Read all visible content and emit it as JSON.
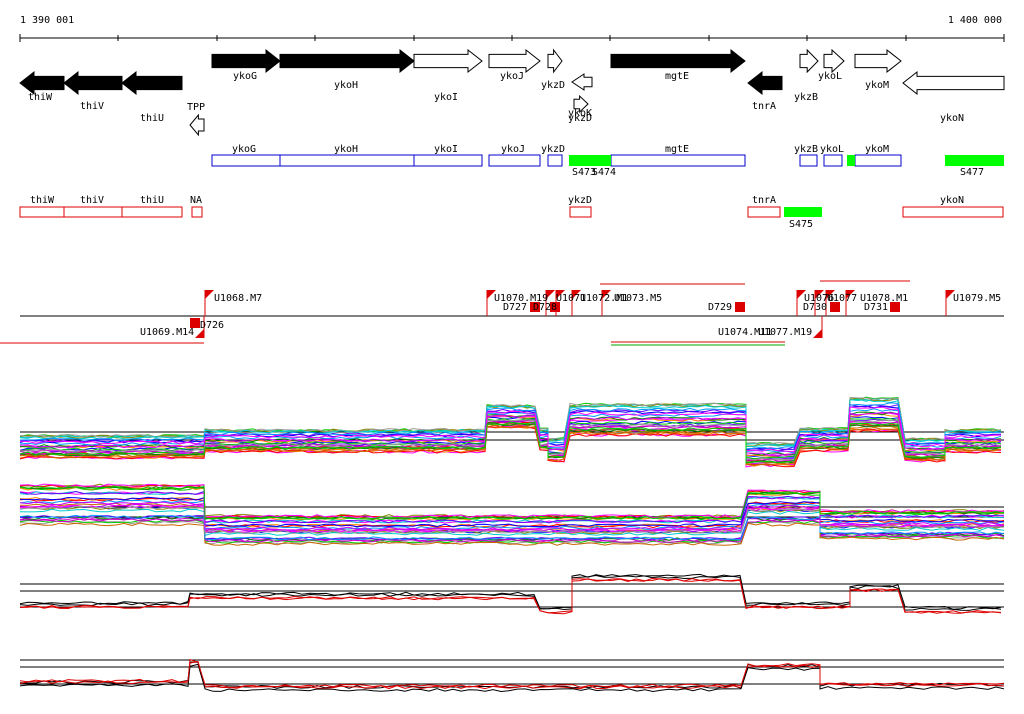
{
  "ruler": {
    "start": "1 390 001",
    "end": "1 400 000"
  },
  "genes": [
    "thiW",
    "thiV",
    "thiU",
    "TPP",
    "ykoG",
    "ykoH",
    "ykoI",
    "ykoJ",
    "ykzD",
    "ykzD",
    "ykoK",
    "mgtE",
    "tnrA",
    "ykzB",
    "ykoL",
    "ykoM",
    "ykoN"
  ],
  "transcripts": [
    "ykoG",
    "ykoH",
    "ykoI",
    "ykoJ",
    "ykzD",
    "mgtE",
    "ykzB",
    "ykoL",
    "ykoM"
  ],
  "segments": [
    "S473",
    "S474",
    "S477"
  ],
  "operons": [
    "thiW",
    "thiV",
    "thiU",
    "NA",
    "ykzD",
    "tnrA",
    "ykoN"
  ],
  "operon_segments": [
    "S475"
  ],
  "features": [
    "U1068.M7",
    "U1070.M19",
    "D727",
    "D728",
    "U1071",
    "U1072.M1",
    "U1073.M5",
    "D729",
    "U1076",
    "D730",
    "U1077",
    "U1078.M1",
    "D731",
    "U1079.M5",
    "U1069.M14",
    "D726",
    "U1074.M11",
    "U1077.M19"
  ]
}
